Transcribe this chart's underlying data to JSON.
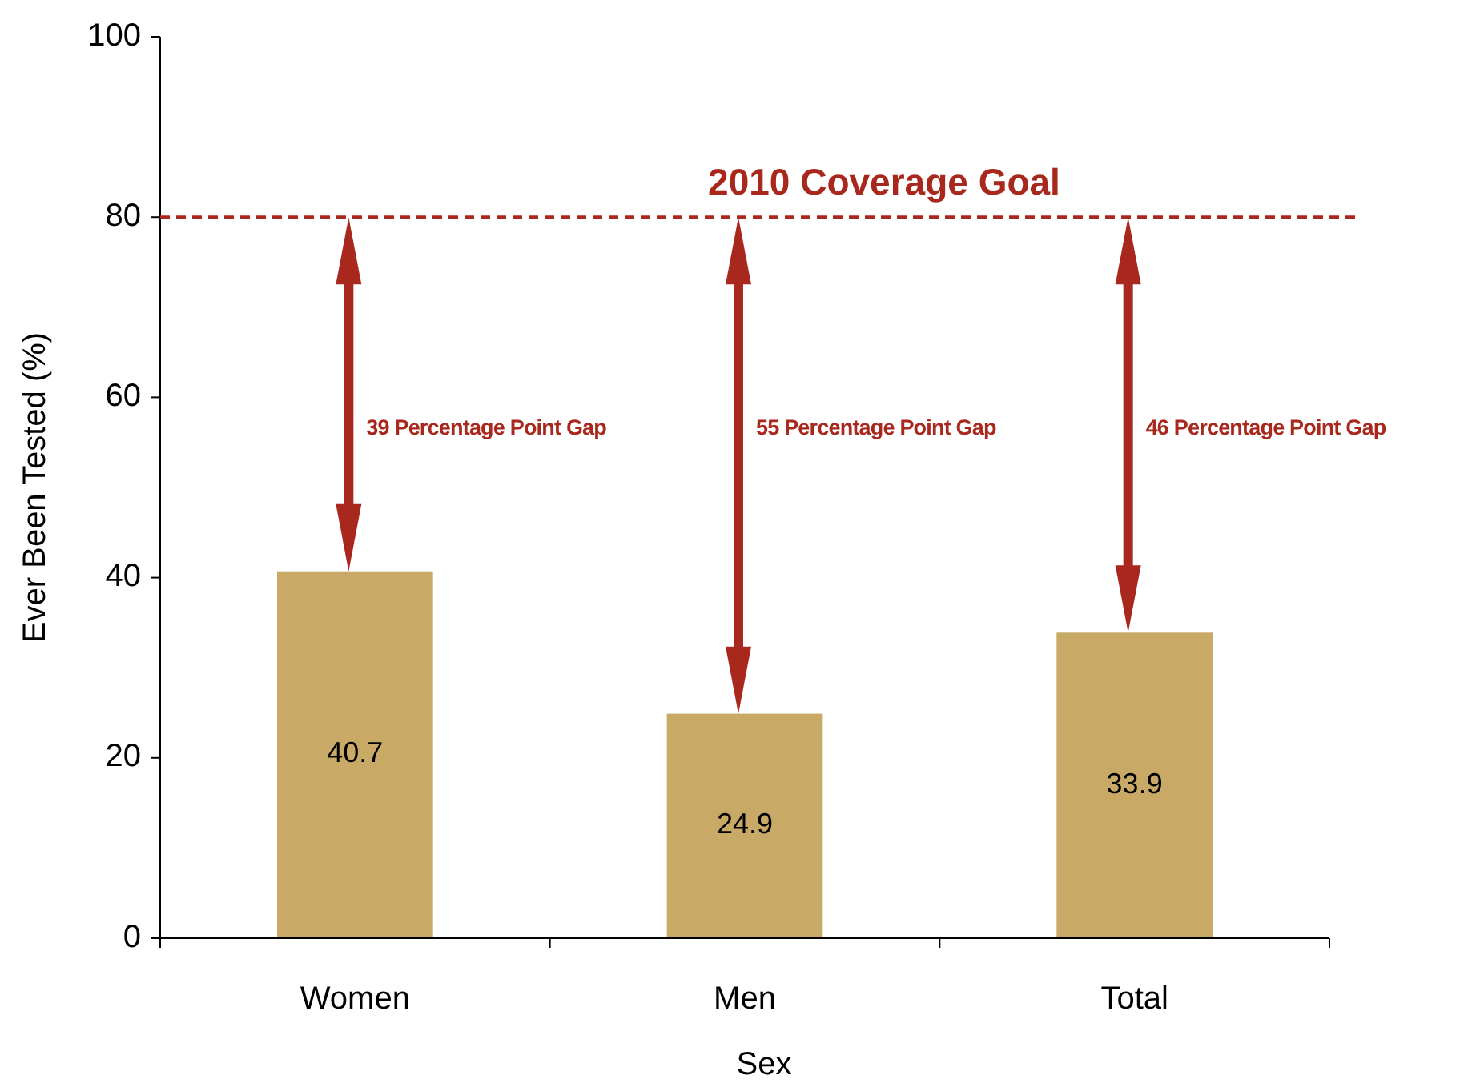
{
  "chart_data": {
    "type": "bar",
    "xlabel": "Sex",
    "ylabel": "Ever Been Tested (%)",
    "categories": [
      "Women",
      "Men",
      "Total"
    ],
    "values": [
      40.7,
      24.9,
      33.9
    ],
    "color": "#c8aa66",
    "data_labels": true,
    "ylim": [
      0,
      100
    ],
    "yticks": [
      0,
      20,
      40,
      60,
      80,
      100
    ],
    "grid": false,
    "ref_lines": [
      {
        "axis": "y",
        "value": 80,
        "label": "2010 Coverage Goal",
        "color": "#a8281e",
        "line_style": "dashed"
      }
    ],
    "annotations": [
      "39 Percentage Point Gap",
      "55 Percentage Point Gap",
      "46 Percentage Point Gap"
    ]
  }
}
